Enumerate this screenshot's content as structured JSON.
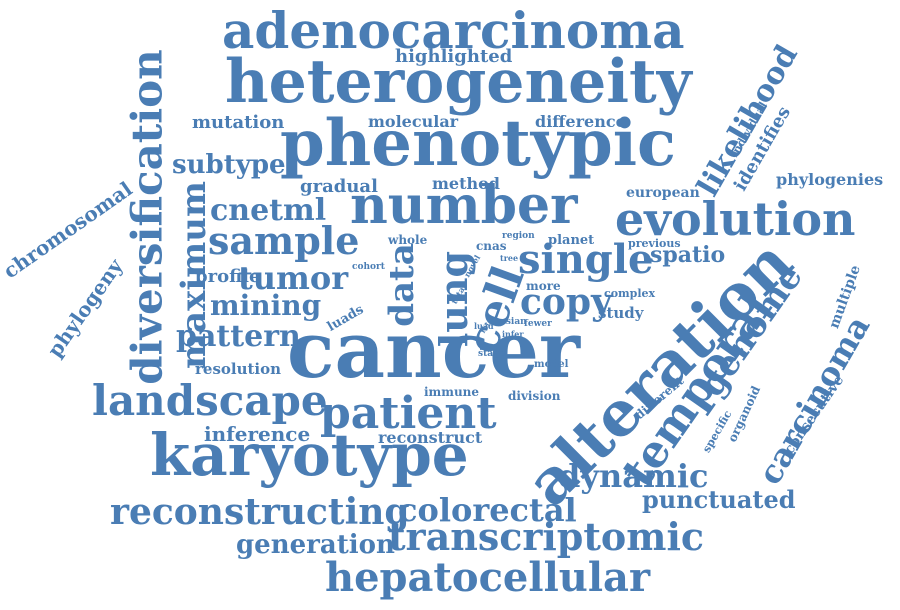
{
  "words": {
    "adenocarcinoma": "adenocarcinoma",
    "heterogeneity": "heterogeneity",
    "phenotypic": "phenotypic",
    "number": "number",
    "evolution": "evolution",
    "sample": "sample",
    "cnetml": "cnetml",
    "single": "single",
    "cell": "cell",
    "lung": "lung",
    "data": "data",
    "tumor": "tumor",
    "maximum": "maximum",
    "diversification": "diversification",
    "mining": "mining",
    "copy": "copy",
    "cancer": "cancer",
    "alteration": "alteration",
    "genome": "genome",
    "temporal": "temporal",
    "carcinoma": "carcinoma",
    "landscape": "landscape",
    "patient": "patient",
    "karyotype": "karyotype",
    "dynamic": "dynamic",
    "punctuated": "punctuated",
    "reconstructing": "reconstructing",
    "colorectal": "colorectal",
    "transcriptomic": "transcriptomic",
    "generation": "generation",
    "hepatocellular": "hepatocellular",
    "likelihood": "likelihood",
    "identifies": "identifies",
    "individual": "individual",
    "phylogenies": "phylogenies",
    "european": "european",
    "spatio": "spatio",
    "previous": "previous",
    "planet": "planet",
    "region": "region",
    "tree": "tree",
    "whole": "whole",
    "cnas": "cnas",
    "total": "total",
    "novel": "novel",
    "more": "more",
    "complex": "complex",
    "study": "study",
    "asian": "asian",
    "luad": "luad",
    "rate": "rate",
    "fewer": "fewer",
    "infer": "infer",
    "stage": "stage",
    "model": "model",
    "immune": "immune",
    "division": "division",
    "reconstruct": "reconstruct",
    "inference": "inference",
    "resolution": "resolution",
    "pattern": "pattern",
    "luads": "luads",
    "profile": "profile",
    "cohort": "cohort",
    "chromosomal": "chromosomal",
    "phylogeny": "phylogeny",
    "subtype": "subtype",
    "mutation": "mutation",
    "molecular": "molecular",
    "difference": "difference",
    "highlighted": "highlighted",
    "gradual": "gradual",
    "method": "method",
    "multiple": "multiple",
    "consecutive": "consecutive",
    "organoid": "organoid",
    "specific": "specific",
    "different": "different"
  },
  "colors": {
    "word": "#4a7db4",
    "background": "#ffffff"
  }
}
